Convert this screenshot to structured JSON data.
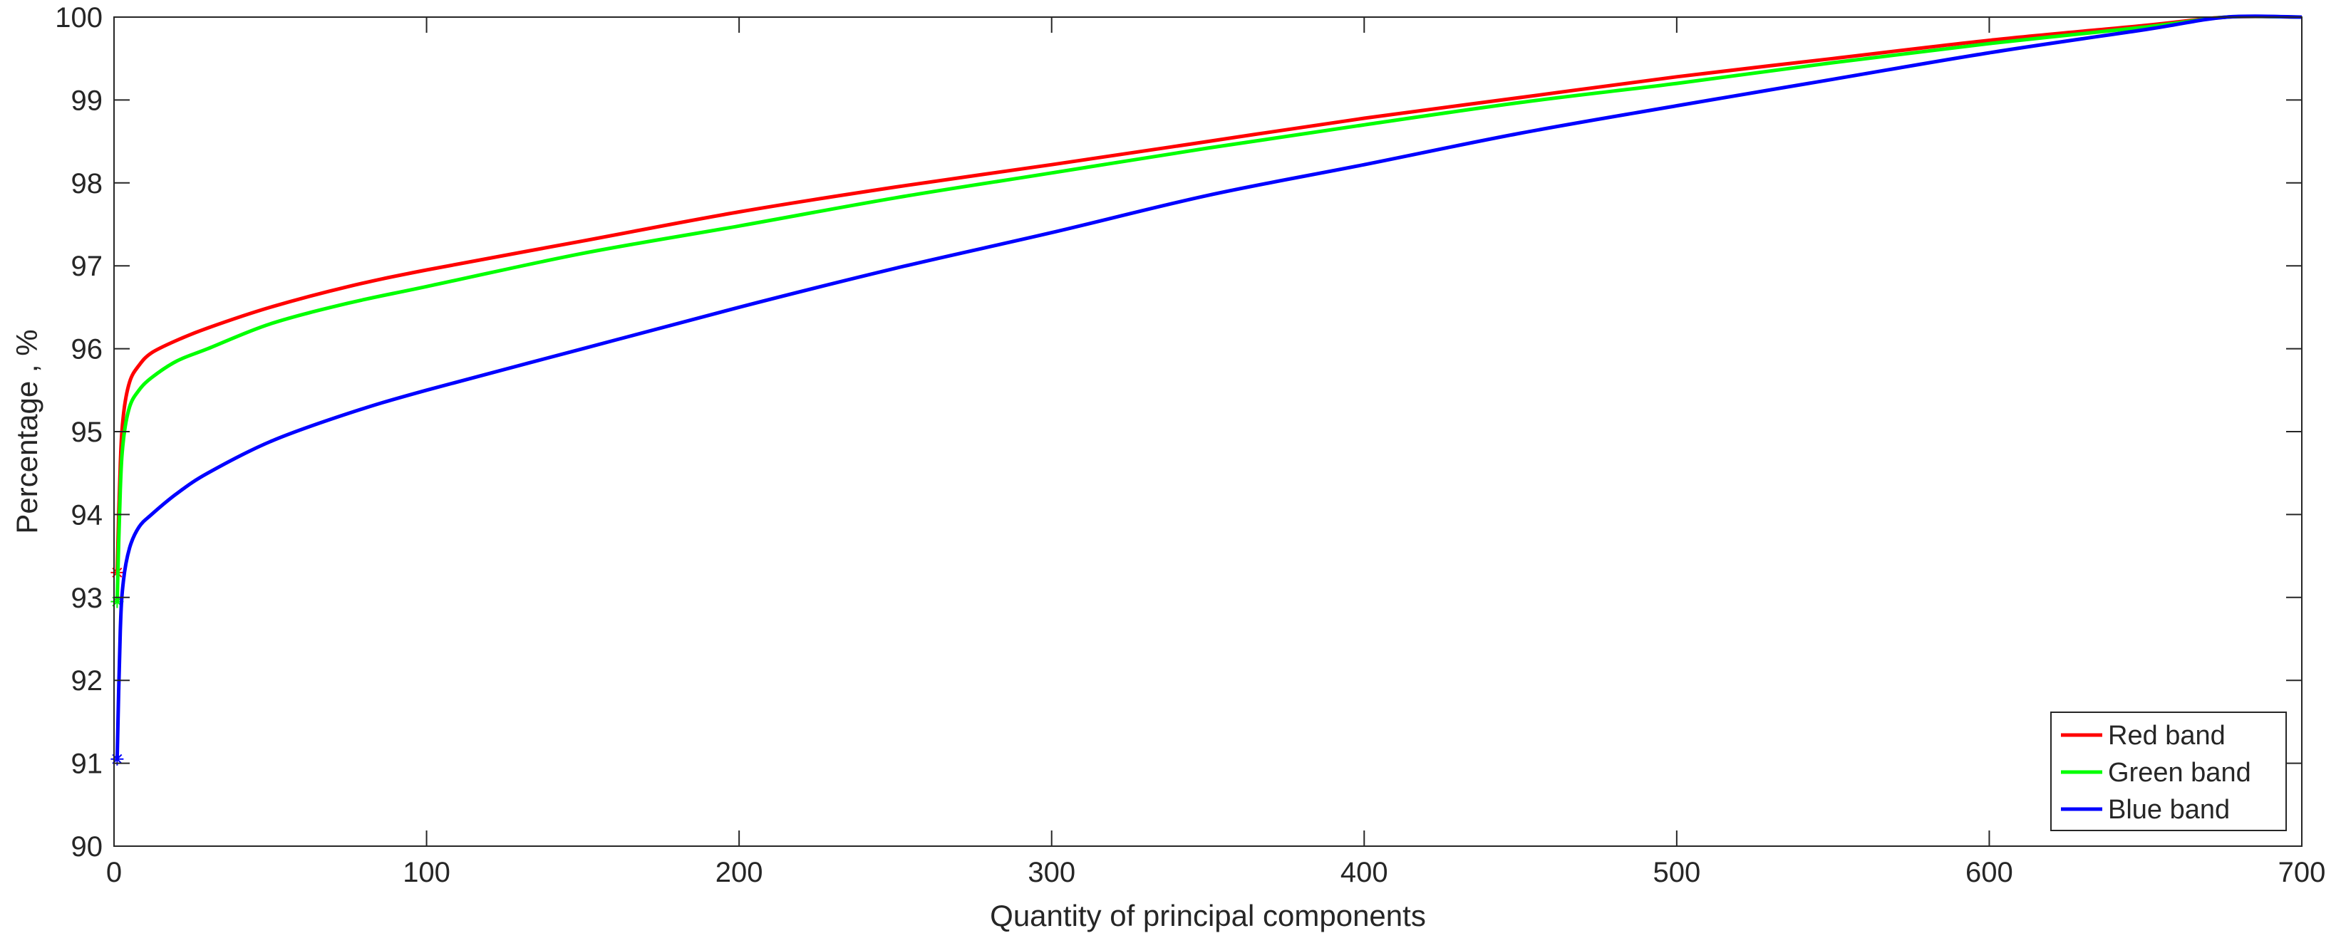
{
  "chart_data": {
    "type": "line",
    "title": "",
    "xlabel": "Quantity of principal components",
    "ylabel": "Percentage , %",
    "xlim": [
      0,
      700
    ],
    "ylim": [
      90,
      100
    ],
    "xticks": [
      "0",
      "100",
      "200",
      "300",
      "400",
      "500",
      "600",
      "700"
    ],
    "yticks": [
      "90",
      "91",
      "92",
      "93",
      "94",
      "95",
      "96",
      "97",
      "98",
      "99",
      "100"
    ],
    "grid": false,
    "legend_position": "bottom-right",
    "series": [
      {
        "name": "Red band",
        "color": "#ff0000",
        "x": [
          1,
          2,
          3,
          5,
          8,
          12,
          20,
          30,
          50,
          75,
          100,
          150,
          200,
          250,
          300,
          350,
          400,
          450,
          500,
          550,
          600,
          650,
          676,
          700
        ],
        "y": [
          93.3,
          94.6,
          95.2,
          95.6,
          95.8,
          95.95,
          96.1,
          96.25,
          96.5,
          96.75,
          96.95,
          97.3,
          97.65,
          97.95,
          98.22,
          98.5,
          98.78,
          99.03,
          99.28,
          99.5,
          99.72,
          99.9,
          100,
          100
        ]
      },
      {
        "name": "Green band",
        "color": "#00ff00",
        "x": [
          1,
          2,
          3,
          5,
          8,
          12,
          20,
          30,
          50,
          75,
          100,
          150,
          200,
          250,
          300,
          350,
          400,
          450,
          500,
          550,
          600,
          650,
          676,
          700
        ],
        "y": [
          92.95,
          94.3,
          94.9,
          95.3,
          95.5,
          95.65,
          95.85,
          96.0,
          96.3,
          96.55,
          96.75,
          97.15,
          97.48,
          97.82,
          98.12,
          98.42,
          98.7,
          98.97,
          99.2,
          99.45,
          99.68,
          99.88,
          100,
          100
        ]
      },
      {
        "name": "Blue band",
        "color": "#0000ff",
        "x": [
          1,
          2,
          3,
          5,
          8,
          12,
          20,
          30,
          50,
          75,
          100,
          150,
          200,
          250,
          300,
          350,
          400,
          450,
          500,
          550,
          600,
          650,
          676,
          700
        ],
        "y": [
          91.05,
          92.6,
          93.2,
          93.6,
          93.85,
          94.0,
          94.25,
          94.5,
          94.88,
          95.22,
          95.5,
          96.0,
          96.5,
          96.97,
          97.4,
          97.85,
          98.22,
          98.6,
          98.93,
          99.25,
          99.57,
          99.85,
          100,
          100
        ]
      }
    ]
  }
}
